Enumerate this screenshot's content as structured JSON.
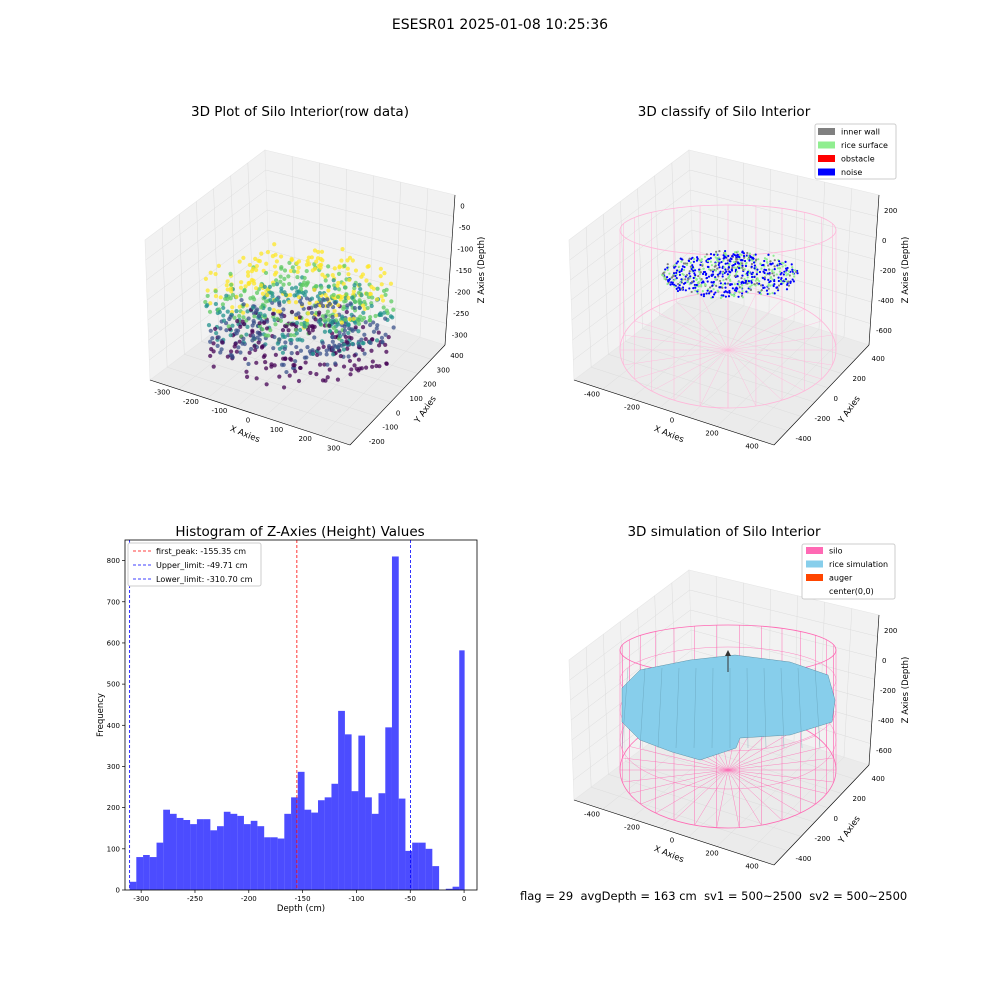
{
  "suptitle": "ESESR01 2025-01-08 10:25:36",
  "panels": {
    "raw": {
      "title": "3D Plot of Silo Interior(row data)",
      "xlabel": "X Axies",
      "ylabel": "Y Axies",
      "zlabel": "Z Axies (Depth)",
      "xticks": [
        "-300",
        "-200",
        "-100",
        "0",
        "100",
        "200",
        "300"
      ],
      "yticks": [
        "-200",
        "-100",
        "0",
        "100",
        "200",
        "300",
        "400"
      ],
      "zticks": [
        "0",
        "-50",
        "-100",
        "-150",
        "-200",
        "-250",
        "-300"
      ],
      "colormap": [
        "#440154",
        "#3b528b",
        "#21918c",
        "#5ec962",
        "#fde725"
      ]
    },
    "classify": {
      "title": "3D classify of Silo Interior",
      "xlabel": "X Axies",
      "ylabel": "Y Axies",
      "zlabel": "Z Axies (Depth)",
      "xticks": [
        "-400",
        "-200",
        "0",
        "200",
        "400"
      ],
      "yticks": [
        "-400",
        "-200",
        "0",
        "200",
        "400"
      ],
      "zticks": [
        "200",
        "0",
        "-200",
        "-400",
        "-600"
      ],
      "legend": [
        {
          "label": "inner wall",
          "color": "#808080"
        },
        {
          "label": "rice surface",
          "color": "#90ee90"
        },
        {
          "label": "obstacle",
          "color": "#ff0000"
        },
        {
          "label": "noise",
          "color": "#0000ff"
        }
      ],
      "silo_color": "#ffb6d9"
    },
    "simulation": {
      "title": "3D simulation of Silo Interior",
      "xlabel": "X Axies",
      "ylabel": "Y Axies",
      "zlabel": "Z Axies (Depth)",
      "xticks": [
        "-400",
        "-200",
        "0",
        "200",
        "400"
      ],
      "yticks": [
        "-400",
        "-200",
        "0",
        "200",
        "400"
      ],
      "zticks": [
        "200",
        "0",
        "-200",
        "-400",
        "-600"
      ],
      "legend": [
        {
          "label": "silo",
          "color": "#ff69b4"
        },
        {
          "label": "rice simulation",
          "color": "#87ceeb"
        },
        {
          "label": "auger",
          "color": "#ff4500"
        },
        {
          "label": "center(0,0)",
          "color": ""
        }
      ]
    }
  },
  "footer": {
    "flag": "flag = 29",
    "avg": "avgDepth = 163 cm",
    "sv1": "sv1 = 500~2500",
    "sv2": "sv2 = 500~2500"
  },
  "chart_data": {
    "type": "bar",
    "title": "Histogram of Z-Axies (Height) Values",
    "xlabel": "Depth (cm)",
    "ylabel": "Frequency",
    "xlim": [
      -315,
      12
    ],
    "ylim": [
      0,
      850
    ],
    "xticks": [
      -300,
      -250,
      -200,
      -150,
      -100,
      -50,
      0
    ],
    "yticks": [
      0,
      100,
      200,
      300,
      400,
      500,
      600,
      700,
      800
    ],
    "bar_color": "#0000ff",
    "bins": [
      {
        "x0": -310.7,
        "x1": -304.5,
        "value": 20
      },
      {
        "x0": -304.5,
        "x1": -298.2,
        "value": 80
      },
      {
        "x0": -298.2,
        "x1": -292.0,
        "value": 85
      },
      {
        "x0": -292.0,
        "x1": -285.7,
        "value": 80
      },
      {
        "x0": -285.7,
        "x1": -279.5,
        "value": 115
      },
      {
        "x0": -279.5,
        "x1": -273.2,
        "value": 195
      },
      {
        "x0": -273.2,
        "x1": -267.0,
        "value": 185
      },
      {
        "x0": -267.0,
        "x1": -260.7,
        "value": 175
      },
      {
        "x0": -260.7,
        "x1": -254.5,
        "value": 170
      },
      {
        "x0": -254.5,
        "x1": -248.2,
        "value": 160
      },
      {
        "x0": -248.2,
        "x1": -242.0,
        "value": 172
      },
      {
        "x0": -242.0,
        "x1": -235.7,
        "value": 172
      },
      {
        "x0": -235.7,
        "x1": -229.5,
        "value": 145
      },
      {
        "x0": -229.5,
        "x1": -223.2,
        "value": 155
      },
      {
        "x0": -223.2,
        "x1": -217.0,
        "value": 190
      },
      {
        "x0": -217.0,
        "x1": -210.7,
        "value": 185
      },
      {
        "x0": -210.7,
        "x1": -204.5,
        "value": 180
      },
      {
        "x0": -204.5,
        "x1": -198.2,
        "value": 160
      },
      {
        "x0": -198.2,
        "x1": -192.0,
        "value": 168
      },
      {
        "x0": -192.0,
        "x1": -185.7,
        "value": 155
      },
      {
        "x0": -185.7,
        "x1": -179.5,
        "value": 128
      },
      {
        "x0": -179.5,
        "x1": -173.2,
        "value": 128
      },
      {
        "x0": -173.2,
        "x1": -167.0,
        "value": 125
      },
      {
        "x0": -167.0,
        "x1": -160.7,
        "value": 185
      },
      {
        "x0": -160.7,
        "x1": -154.5,
        "value": 225
      },
      {
        "x0": -154.5,
        "x1": -148.2,
        "value": 287
      },
      {
        "x0": -148.2,
        "x1": -142.0,
        "value": 195
      },
      {
        "x0": -142.0,
        "x1": -135.7,
        "value": 188
      },
      {
        "x0": -135.7,
        "x1": -129.5,
        "value": 218
      },
      {
        "x0": -129.5,
        "x1": -123.2,
        "value": 225
      },
      {
        "x0": -123.2,
        "x1": -117.0,
        "value": 258
      },
      {
        "x0": -117.0,
        "x1": -110.7,
        "value": 435
      },
      {
        "x0": -110.7,
        "x1": -104.5,
        "value": 378
      },
      {
        "x0": -104.5,
        "x1": -98.2,
        "value": 240
      },
      {
        "x0": -98.2,
        "x1": -92.0,
        "value": 375
      },
      {
        "x0": -92.0,
        "x1": -85.7,
        "value": 225
      },
      {
        "x0": -85.7,
        "x1": -79.5,
        "value": 185
      },
      {
        "x0": -79.5,
        "x1": -73.2,
        "value": 235
      },
      {
        "x0": -73.2,
        "x1": -67.0,
        "value": 395
      },
      {
        "x0": -67.0,
        "x1": -60.7,
        "value": 810
      },
      {
        "x0": -60.7,
        "x1": -54.5,
        "value": 222
      },
      {
        "x0": -54.5,
        "x1": -48.2,
        "value": 95
      },
      {
        "x0": -48.2,
        "x1": -42.0,
        "value": 115
      },
      {
        "x0": -42.0,
        "x1": -35.7,
        "value": 115
      },
      {
        "x0": -35.7,
        "x1": -29.5,
        "value": 100
      },
      {
        "x0": -29.5,
        "x1": -23.2,
        "value": 58
      },
      {
        "x0": -23.2,
        "x1": -17.0,
        "value": 0
      },
      {
        "x0": -17.0,
        "x1": -10.7,
        "value": 3
      },
      {
        "x0": -10.7,
        "x1": -4.5,
        "value": 8
      },
      {
        "x0": -4.5,
        "x1": 0.5,
        "value": 582
      }
    ],
    "vlines": [
      {
        "label": "first_peak: -155.35 cm",
        "x": -155.35,
        "color": "#ff0000"
      },
      {
        "label": "Upper_limit: -49.71 cm",
        "x": -49.71,
        "color": "#0000ff"
      },
      {
        "label": "Lower_limit: -310.70 cm",
        "x": -310.7,
        "color": "#0000ff"
      }
    ],
    "legend_position": "upper-left"
  }
}
